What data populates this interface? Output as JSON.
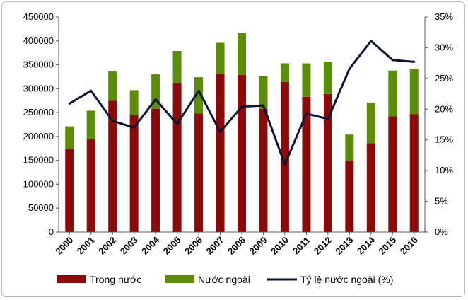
{
  "chart_data": {
    "type": "bar",
    "stacked": true,
    "categories": [
      "2000",
      "2001",
      "2002",
      "2003",
      "2004",
      "2005",
      "2006",
      "2007",
      "2008",
      "2009",
      "2010",
      "2011",
      "2012",
      "2013",
      "2014",
      "2015",
      "2016"
    ],
    "series": [
      {
        "name": "Trong nước",
        "type": "bar",
        "axis": "left",
        "color": "#8b0a0a",
        "values": [
          174000,
          194000,
          275000,
          245000,
          258000,
          312000,
          248000,
          331000,
          329000,
          258000,
          314000,
          283000,
          289000,
          150000,
          186000,
          242000,
          247000
        ]
      },
      {
        "name": "Nước ngoài",
        "type": "bar",
        "axis": "left",
        "color": "#5b8c0a",
        "values": [
          47000,
          60000,
          61000,
          52000,
          72000,
          67000,
          76000,
          65000,
          87000,
          68000,
          39000,
          70000,
          67000,
          54000,
          85000,
          96000,
          95000
        ]
      },
      {
        "name": "Tỷ lệ nước ngoài (%)",
        "type": "line",
        "axis": "right",
        "color": "#0a1433",
        "values": [
          20.9,
          23.0,
          18.1,
          17.0,
          21.6,
          17.6,
          23.0,
          16.3,
          20.4,
          20.6,
          11.0,
          19.3,
          18.4,
          26.6,
          31.1,
          28.0,
          27.7
        ]
      }
    ],
    "y_left": {
      "ylim": [
        0,
        450000
      ],
      "ticks": [
        "0",
        "50000",
        "100000",
        "150000",
        "200000",
        "250000",
        "300000",
        "350000",
        "400000",
        "450000"
      ]
    },
    "y_right": {
      "ylim": [
        0,
        35
      ],
      "ticks": [
        "0%",
        "5%",
        "10%",
        "15%",
        "20%",
        "25%",
        "30%",
        "35%"
      ]
    },
    "grid": false,
    "legend": {
      "position": "bottom",
      "entries": [
        "Trong nước",
        "Nước ngoài",
        "Tỷ lệ nước ngoài (%)"
      ]
    }
  }
}
